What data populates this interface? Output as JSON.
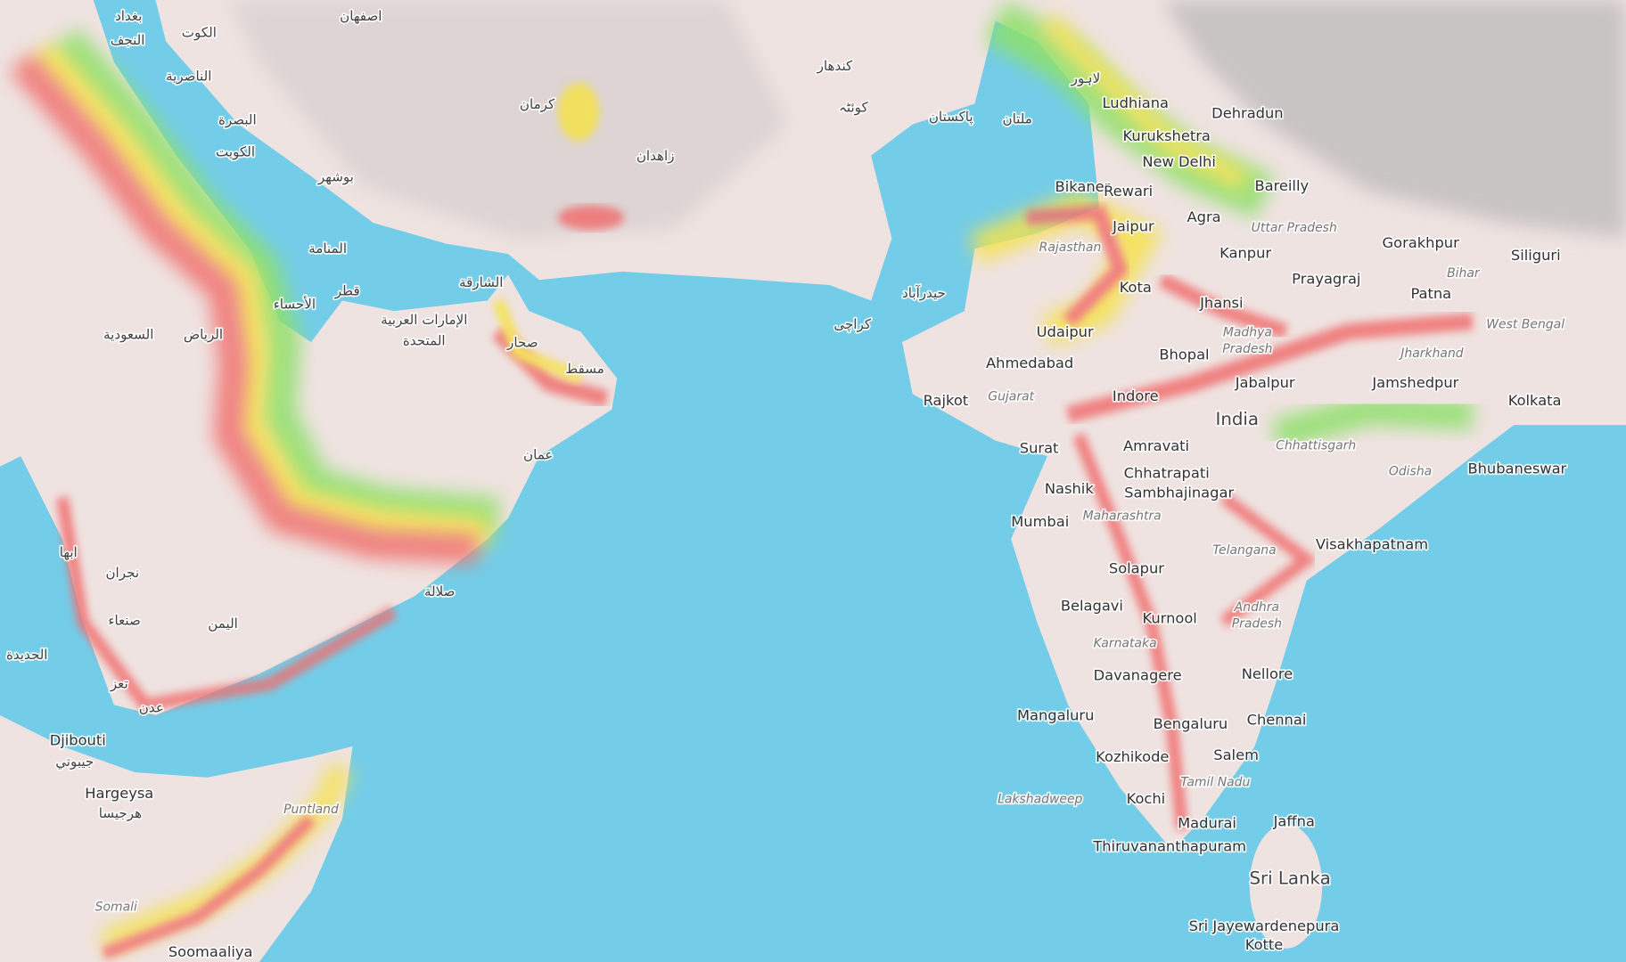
{
  "cities": [
    "Ludhiana",
    "Dehradun",
    "Kurukshetra",
    "New Delhi",
    "Bikaner",
    "Rewari",
    "Bareilly",
    "Agra",
    "Jaipur",
    "Kanpur",
    "Gorakhpur",
    "Siliguri",
    "Prayagraj",
    "Patna",
    "Kota",
    "Jhansi",
    "Udaipur",
    "Bhopal",
    "Ahmedabad",
    "Jamshedpur",
    "Jabalpur",
    "Kolkata",
    "Rajkot",
    "Indore",
    "Surat",
    "Amravati",
    "Chhatrapati",
    "Sambhajinagar",
    "Nashik",
    "Bhubaneswar",
    "Mumbai",
    "Visakhapatnam",
    "Solapur",
    "Belagavi",
    "Kurnool",
    "Nellore",
    "Davanagere",
    "Mangaluru",
    "Chennai",
    "Bengaluru",
    "Salem",
    "Kozhikode",
    "Kochi",
    "Madurai",
    "Jaffna",
    "Thiruvananthapuram",
    "Sri Jayewardenepura",
    "Kotte",
    "Djibouti",
    "Hargeysa",
    "Soomaaliya"
  ],
  "countries": [
    "India",
    "Sri Lanka"
  ],
  "regions": [
    "Uttar Pradesh",
    "Bihar",
    "Rajasthan",
    "Madhya",
    "Pradesh",
    "Gujarat",
    "Jharkhand",
    "West Bengal",
    "Chhattisgarh",
    "Odisha",
    "Maharashtra",
    "Telangana",
    "Andhra",
    "Pradesh",
    "Karnataka",
    "Tamil Nadu",
    "Lakshadweep",
    "Puntland",
    "Somali"
  ],
  "arabic_labels": [
    "بغداد",
    "النجف",
    "الكوت",
    "الناصرية",
    "البصرة",
    "الكويت",
    "بوشهر",
    "المنامة",
    "قطر",
    "الأحساء",
    "الرياض",
    "السعودية",
    "الإمارات العربية",
    "المتحدة",
    "الشارقة",
    "صحار",
    "مسقط",
    "عمان",
    "صلالة",
    "اليمن",
    "صنعاء",
    "عدن",
    "کراچی",
    "حیدرآباد",
    "پاکستان",
    "ملتان",
    "لاہور",
    "زاهدان",
    "کرمان",
    "اصفهان",
    "کندهار",
    "کوئٹہ",
    "نجران",
    "الحديدة",
    "تعز",
    "ابها",
    "جيبوتي",
    "هرجيسا"
  ]
}
